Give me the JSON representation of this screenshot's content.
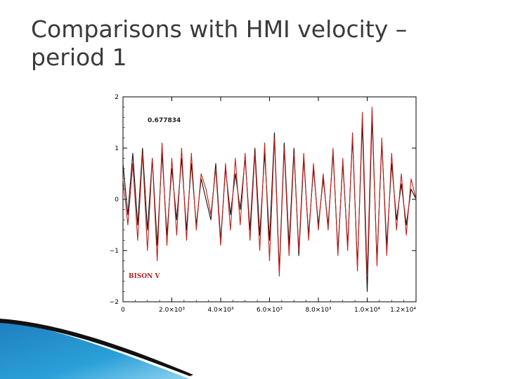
{
  "slide": {
    "title_line1": "Comparisons with HMI velocity –",
    "title_line2": "period 1"
  },
  "colors": {
    "background": "#ffffff",
    "title": "#3a3a3a",
    "series_black": "#111111",
    "series_red": "#c0201c",
    "accent_blue": "#2aa0d8"
  },
  "chart_data": {
    "type": "line",
    "title": "",
    "xlabel": "",
    "ylabel": "",
    "xlim": [
      0,
      12000
    ],
    "ylim": [
      -2,
      2
    ],
    "xticks": [
      0,
      2000,
      4000,
      6000,
      8000,
      10000,
      12000
    ],
    "xtick_labels": [
      "0",
      "2.0×10³",
      "4.0×10³",
      "6.0×10³",
      "8.0×10³",
      "1.0×10⁴",
      "1.2×10⁴"
    ],
    "yticks": [
      -2,
      -1,
      0,
      1,
      2
    ],
    "ytick_labels": [
      "−2",
      "−1",
      "0",
      "1",
      "2"
    ],
    "annotations": {
      "correlation": "0.677834",
      "series_label": "BISON V"
    },
    "grid": false,
    "series": [
      {
        "color": "black",
        "x": [
          0,
          200,
          400,
          600,
          800,
          1000,
          1200,
          1400,
          1600,
          1800,
          2000,
          2200,
          2400,
          2600,
          2800,
          3000,
          3200,
          3400,
          3600,
          3800,
          4000,
          4200,
          4400,
          4600,
          4800,
          5000,
          5200,
          5400,
          5600,
          5800,
          6000,
          6200,
          6400,
          6600,
          6800,
          7000,
          7200,
          7400,
          7600,
          7800,
          8000,
          8200,
          8400,
          8600,
          8800,
          9000,
          9200,
          9400,
          9600,
          9800,
          10000,
          10200,
          10400,
          10600,
          10800,
          11000,
          11200,
          11400,
          11600,
          11800,
          12000
        ],
        "values": [
          0.7,
          -0.3,
          0.9,
          -0.5,
          1.0,
          -0.6,
          0.8,
          -0.9,
          0.9,
          -0.7,
          0.6,
          -0.4,
          0.8,
          -0.6,
          0.7,
          -0.5,
          0.4,
          0.0,
          -0.4,
          0.7,
          -0.8,
          0.6,
          -0.3,
          0.5,
          -0.2,
          0.8,
          -0.6,
          1.0,
          -0.7,
          0.9,
          -0.8,
          1.3,
          -1.4,
          1.1,
          -0.9,
          1.0,
          -1.1,
          0.8,
          -0.7,
          0.6,
          -0.5,
          0.4,
          -0.5,
          0.9,
          -1.0,
          0.7,
          -0.9,
          1.2,
          -1.3,
          1.5,
          -1.8,
          1.6,
          -1.2,
          1.1,
          -0.9,
          0.7,
          -0.4,
          0.3,
          -0.5,
          0.2,
          0.0
        ]
      },
      {
        "color": "red",
        "x": [
          0,
          200,
          400,
          600,
          800,
          1000,
          1200,
          1400,
          1600,
          1800,
          2000,
          2200,
          2400,
          2600,
          2800,
          3000,
          3200,
          3400,
          3600,
          3800,
          4000,
          4200,
          4400,
          4600,
          4800,
          5000,
          5200,
          5400,
          5600,
          5800,
          6000,
          6200,
          6400,
          6600,
          6800,
          7000,
          7200,
          7400,
          7600,
          7800,
          8000,
          8200,
          8400,
          8600,
          8800,
          9000,
          9200,
          9400,
          9600,
          9800,
          10000,
          10200,
          10400,
          10600,
          10800,
          11000,
          11200,
          11400,
          11600,
          11800,
          12000
        ],
        "values": [
          0.4,
          -0.5,
          0.7,
          -0.8,
          0.9,
          -1.0,
          0.8,
          -1.2,
          1.1,
          -0.9,
          0.8,
          -0.7,
          1.0,
          -0.8,
          0.9,
          -0.6,
          0.5,
          0.2,
          -0.3,
          0.6,
          -0.9,
          0.7,
          -0.6,
          0.8,
          -0.5,
          0.9,
          -0.8,
          0.9,
          -1.0,
          1.1,
          -1.2,
          1.2,
          -1.5,
          1.0,
          -1.1,
          0.9,
          -1.0,
          0.9,
          -0.8,
          0.7,
          -0.6,
          0.5,
          -0.6,
          1.0,
          -1.1,
          0.8,
          -1.0,
          1.3,
          -1.4,
          1.7,
          -1.5,
          1.8,
          -1.3,
          1.2,
          -1.1,
          0.9,
          -0.6,
          0.5,
          -0.7,
          0.4,
          0.0
        ]
      }
    ]
  }
}
